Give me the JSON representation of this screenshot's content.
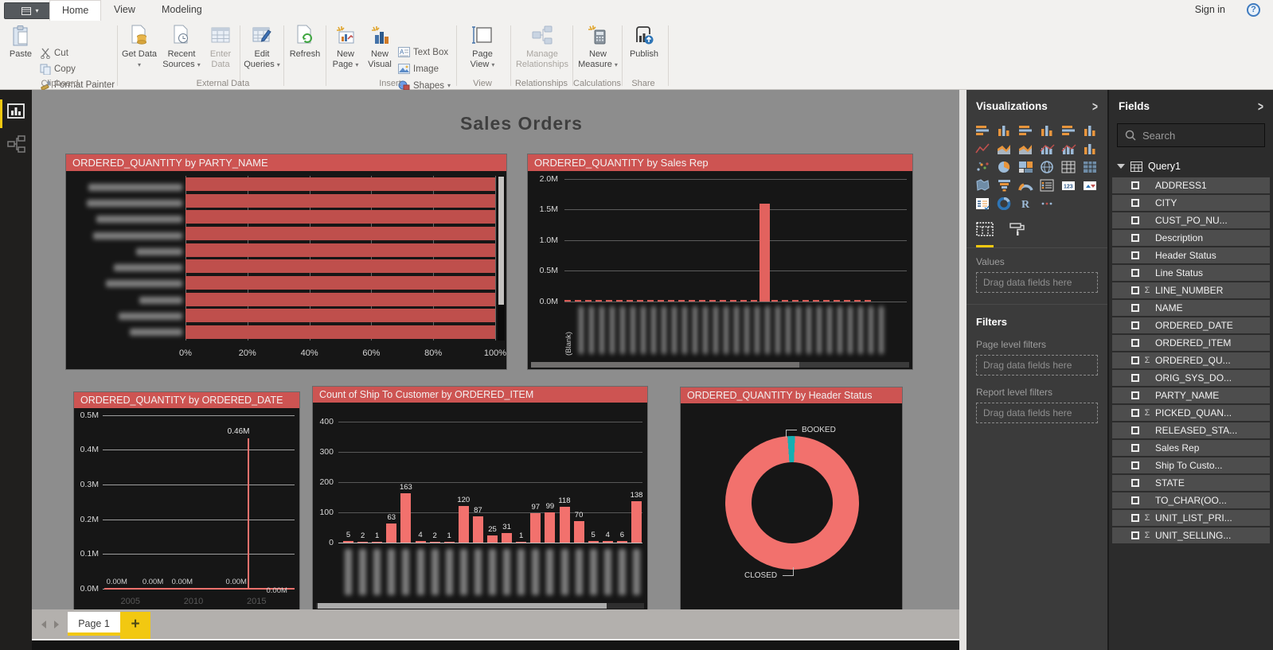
{
  "titlebar": {
    "tabs": [
      {
        "label": "Home",
        "active": true
      },
      {
        "label": "View",
        "active": false
      },
      {
        "label": "Modeling",
        "active": false
      }
    ],
    "sign_in": "Sign in"
  },
  "ribbon": {
    "buttons": {
      "paste": "Paste",
      "cut": "Cut",
      "copy": "Copy",
      "format_painter": "Format Painter",
      "get_data": "Get Data",
      "recent_sources": "Recent Sources",
      "enter_data": "Enter Data",
      "edit_queries": "Edit Queries",
      "refresh": "Refresh",
      "new_page": "New Page",
      "new_visual": "New Visual",
      "text_box": "Text Box",
      "image": "Image",
      "shapes": "Shapes",
      "page_view": "Page View",
      "manage_relationships": "Manage Relationships",
      "new_measure": "New Measure",
      "publish": "Publish"
    },
    "groups": [
      "Clipboard",
      "External Data",
      "Insert",
      "View",
      "Relationships",
      "Calculations",
      "Share"
    ]
  },
  "canvas": {
    "title": "Sales Orders"
  },
  "charts": {
    "party_name": {
      "title": "ORDERED_QUANTITY by PARTY_NAME",
      "chart_data": {
        "type": "bar",
        "orientation": "horizontal",
        "categories_redacted": true,
        "bar_count": 10,
        "values_pct": [
          100,
          100,
          100,
          100,
          100,
          100,
          100,
          100,
          100,
          100
        ],
        "x_ticks": [
          "0%",
          "20%",
          "40%",
          "60%",
          "80%",
          "100%"
        ],
        "label_blob_widths": [
          118,
          120,
          108,
          112,
          58,
          86,
          96,
          54,
          80,
          66
        ],
        "bar_color": "#BF4F4C"
      }
    },
    "sales_rep": {
      "title": "ORDERED_QUANTITY by Sales Rep",
      "chart_data": {
        "type": "column",
        "y_ticks": [
          "2.0M",
          "1.5M",
          "1.0M",
          "0.5M",
          "0.0M"
        ],
        "ylim": [
          0,
          2000000
        ],
        "first_category": "(Blank)",
        "categories_redacted": true,
        "category_count": 30,
        "peak": {
          "position_pct": 57,
          "height_pct": 80,
          "approx_value": "1.6M"
        },
        "bar_color": "#E2625E"
      }
    },
    "ordered_date": {
      "title": "ORDERED_QUANTITY by ORDERED_DATE",
      "chart_data": {
        "type": "line",
        "y_ticks": [
          "0.5M",
          "0.4M",
          "0.3M",
          "0.2M",
          "0.1M",
          "0.0M"
        ],
        "ylim": [
          0,
          500000
        ],
        "x_ticks": [
          {
            "label": "2005",
            "x_pct": 25
          },
          {
            "label": "2010",
            "x_pct": 53
          },
          {
            "label": "2015",
            "x_pct": 81
          }
        ],
        "spike": {
          "x_pct": 77,
          "label": "0.46M",
          "value": 460000
        },
        "zero_labels": [
          {
            "label": "0.00M",
            "x_pct": 19
          },
          {
            "label": "0.00M",
            "x_pct": 35
          },
          {
            "label": "0.00M",
            "x_pct": 48
          },
          {
            "label": "0.00M",
            "x_pct": 72
          },
          {
            "label": "0.00M",
            "x_pct": 90,
            "low": true
          }
        ],
        "line_color": "#F2716D"
      }
    },
    "ordered_item": {
      "title": "Count of Ship To Customer by ORDERED_ITEM",
      "chart_data": {
        "type": "column",
        "y_ticks": [
          "400",
          "300",
          "200",
          "100",
          "0"
        ],
        "ylim": [
          0,
          400
        ],
        "values": [
          5,
          2,
          1,
          63,
          163,
          4,
          2,
          1,
          120,
          87,
          25,
          31,
          1,
          97,
          99,
          118,
          70,
          5,
          4,
          6,
          138
        ],
        "categories_redacted": true,
        "bar_color": "#F2716D"
      }
    },
    "header_status": {
      "title": "ORDERED_QUANTITY by Header Status",
      "chart_data": {
        "type": "donut",
        "slices": [
          {
            "label": "BOOKED",
            "color": "#16AFB2",
            "pct": 1.8
          },
          {
            "label": "CLOSED",
            "color": "#F2716D",
            "pct": 98.2
          }
        ]
      }
    }
  },
  "viz_panel": {
    "title": "Visualizations",
    "icons": [
      "stacked-bar-chart",
      "stacked-column-chart",
      "clustered-bar-chart",
      "clustered-column-chart",
      "100-stacked-bar-chart",
      "100-stacked-column-chart",
      "line-chart",
      "area-chart",
      "stacked-area-chart",
      "line-and-stacked-column-chart",
      "line-and-clustered-column-chart",
      "waterfall-chart",
      "scatter-chart",
      "pie-chart",
      "treemap",
      "map",
      "table",
      "matrix",
      "filled-map",
      "funnel",
      "gauge",
      "multi-row-card",
      "card",
      "kpi",
      "slicer",
      "donut-chart",
      "r-script-visual",
      "more-options"
    ],
    "values_label": "Values",
    "drag_placeholder": "Drag data fields here",
    "filters_title": "Filters",
    "page_level": "Page level filters",
    "report_level": "Report level filters"
  },
  "fields_panel": {
    "title": "Fields",
    "search_placeholder": "Search",
    "table_name": "Query1",
    "fields": [
      {
        "name": "ADDRESS1",
        "sigma": false
      },
      {
        "name": "CITY",
        "sigma": false
      },
      {
        "name": "CUST_PO_NU...",
        "sigma": false
      },
      {
        "name": "Description",
        "sigma": false
      },
      {
        "name": "Header Status",
        "sigma": false
      },
      {
        "name": "Line Status",
        "sigma": false
      },
      {
        "name": "LINE_NUMBER",
        "sigma": true
      },
      {
        "name": "NAME",
        "sigma": false
      },
      {
        "name": "ORDERED_DATE",
        "sigma": false
      },
      {
        "name": "ORDERED_ITEM",
        "sigma": false
      },
      {
        "name": "ORDERED_QU...",
        "sigma": true
      },
      {
        "name": "ORIG_SYS_DO...",
        "sigma": false
      },
      {
        "name": "PARTY_NAME",
        "sigma": false
      },
      {
        "name": "PICKED_QUAN...",
        "sigma": true
      },
      {
        "name": "RELEASED_STA...",
        "sigma": false
      },
      {
        "name": "Sales Rep",
        "sigma": false
      },
      {
        "name": "Ship To Custo...",
        "sigma": false
      },
      {
        "name": "STATE",
        "sigma": false
      },
      {
        "name": "TO_CHAR(OO...",
        "sigma": false
      },
      {
        "name": "UNIT_LIST_PRI...",
        "sigma": true
      },
      {
        "name": "UNIT_SELLING...",
        "sigma": true
      }
    ]
  },
  "footer": {
    "page_tab": "Page 1",
    "add_page": "+"
  }
}
